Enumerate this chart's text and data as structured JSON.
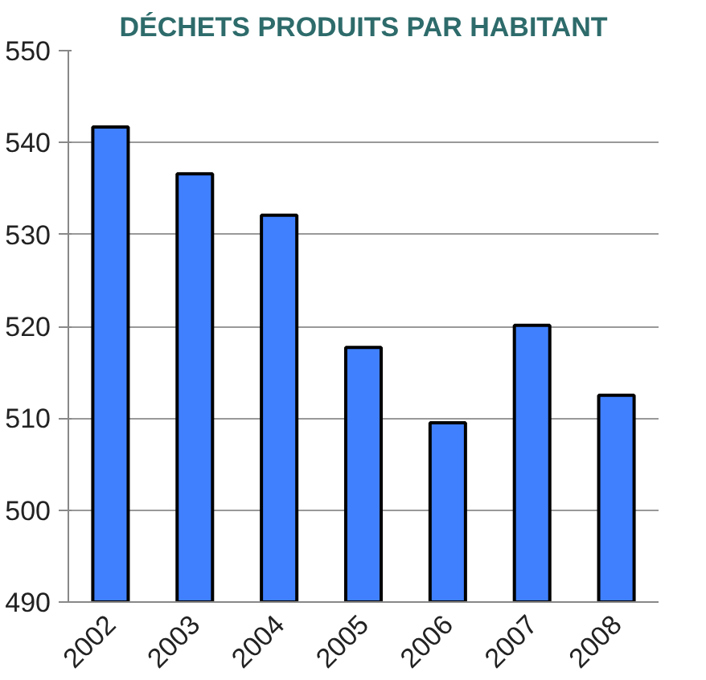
{
  "chart_data": {
    "type": "bar",
    "title": "DÉCHETS PRODUITS PAR HABITANT",
    "categories": [
      "2002",
      "2003",
      "2004",
      "2005",
      "2006",
      "2007",
      "2008"
    ],
    "values": [
      541.7,
      536.6,
      532.1,
      517.7,
      509.5,
      520.1,
      512.5
    ],
    "color": "#4080ff",
    "ylim": [
      490,
      550
    ],
    "yticks": [
      490,
      500,
      510,
      520,
      530,
      540,
      550
    ],
    "grid": "y"
  }
}
